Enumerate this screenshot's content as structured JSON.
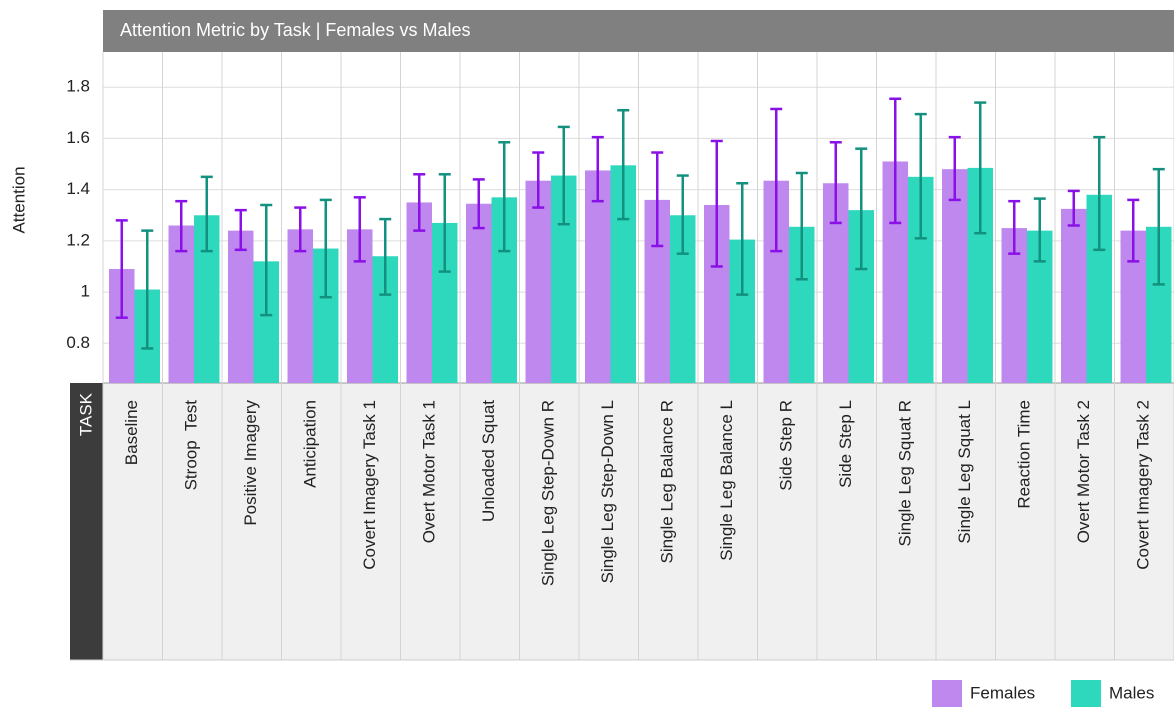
{
  "chart_data": {
    "type": "bar",
    "title": "Attention Metric by Task | Females vs Males",
    "y_label": "Attention",
    "x_label": "TASK",
    "categories": [
      "Baseline",
      "Stroop  Test",
      "Positive Imagery",
      "Anticipation",
      "Covert Imagery Task 1",
      "Overt Motor Task 1",
      "Unloaded Squat",
      "Single Leg Step-Down R",
      "Single Leg Step-Down L",
      "Single Leg Balance R",
      "Single Leg Balance L",
      "Side Step R",
      "Side Step L",
      "Single Leg Squat R",
      "Single Leg Squat L",
      "Reaction Time",
      "Overt Motor Task 2",
      "Covert Imagery Task 2"
    ],
    "series": [
      {
        "name": "Females",
        "color": "#bf88ee",
        "error_color": "#8a10e8",
        "values": [
          1.09,
          1.26,
          1.24,
          1.245,
          1.245,
          1.35,
          1.345,
          1.435,
          1.475,
          1.36,
          1.34,
          1.435,
          1.425,
          1.51,
          1.48,
          1.25,
          1.325,
          1.24
        ],
        "lower": [
          0.9,
          1.16,
          1.165,
          1.16,
          1.12,
          1.24,
          1.25,
          1.33,
          1.355,
          1.18,
          1.1,
          1.16,
          1.27,
          1.27,
          1.36,
          1.15,
          1.26,
          1.12
        ],
        "upper": [
          1.28,
          1.355,
          1.32,
          1.33,
          1.37,
          1.46,
          1.44,
          1.545,
          1.605,
          1.545,
          1.59,
          1.715,
          1.585,
          1.755,
          1.605,
          1.355,
          1.395,
          1.36
        ]
      },
      {
        "name": "Males",
        "color": "#2ed8bc",
        "error_color": "#13917f",
        "values": [
          1.01,
          1.3,
          1.12,
          1.17,
          1.14,
          1.27,
          1.37,
          1.455,
          1.495,
          1.3,
          1.205,
          1.255,
          1.32,
          1.45,
          1.485,
          1.24,
          1.38,
          1.255
        ],
        "lower": [
          0.78,
          1.16,
          0.91,
          0.98,
          0.99,
          1.08,
          1.16,
          1.265,
          1.285,
          1.15,
          0.99,
          1.05,
          1.09,
          1.21,
          1.23,
          1.12,
          1.165,
          1.03
        ],
        "upper": [
          1.24,
          1.45,
          1.34,
          1.36,
          1.285,
          1.46,
          1.585,
          1.645,
          1.71,
          1.455,
          1.425,
          1.465,
          1.56,
          1.695,
          1.74,
          1.365,
          1.605,
          1.48
        ]
      }
    ],
    "ylim": [
      0.645,
      1.9375
    ],
    "yticks": [
      0.8,
      1,
      1.2,
      1.4,
      1.6,
      1.8
    ],
    "grid": true
  }
}
